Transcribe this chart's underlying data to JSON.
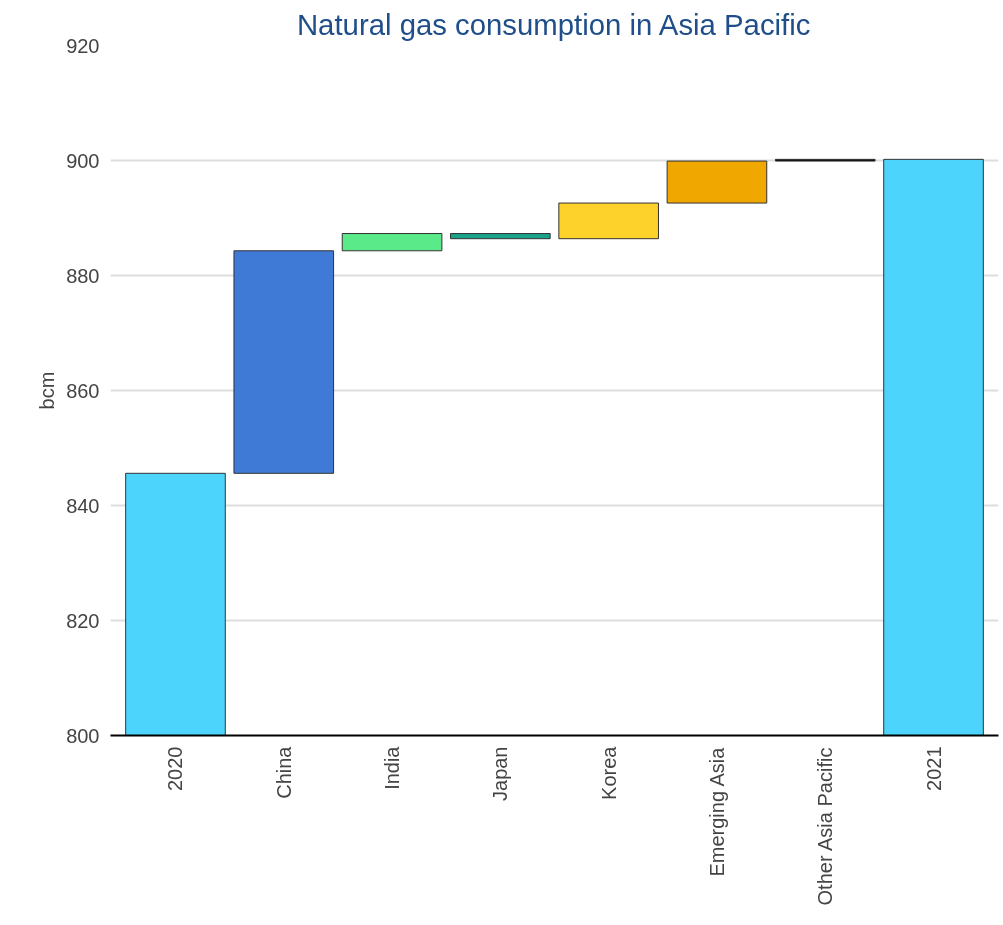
{
  "chart_data": {
    "type": "bar",
    "title": "Natural gas consumption in Asia Pacific",
    "ylabel": "bcm",
    "categories": [
      "2020",
      "China",
      "India",
      "Japan",
      "Korea",
      "Emerging Asia",
      "Other Asia Pacific",
      "2021"
    ],
    "values": [
      45.6,
      38.7,
      3.0,
      -0.9,
      6.2,
      7.3,
      0.3,
      100.2
    ],
    "base": [
      800,
      845.6,
      884.3,
      887.3,
      886.4,
      892.6,
      899.9,
      800
    ],
    "colors": [
      "#4dd4fc",
      "#3f7bd6",
      "#5bea8a",
      "#1aa38a",
      "#fdd22a",
      "#f0a800",
      "#000000",
      "#4dd4fc"
    ],
    "ylim": [
      800,
      920
    ],
    "yticks": [
      800,
      820,
      840,
      860,
      880,
      900,
      920
    ],
    "grid": "y"
  }
}
